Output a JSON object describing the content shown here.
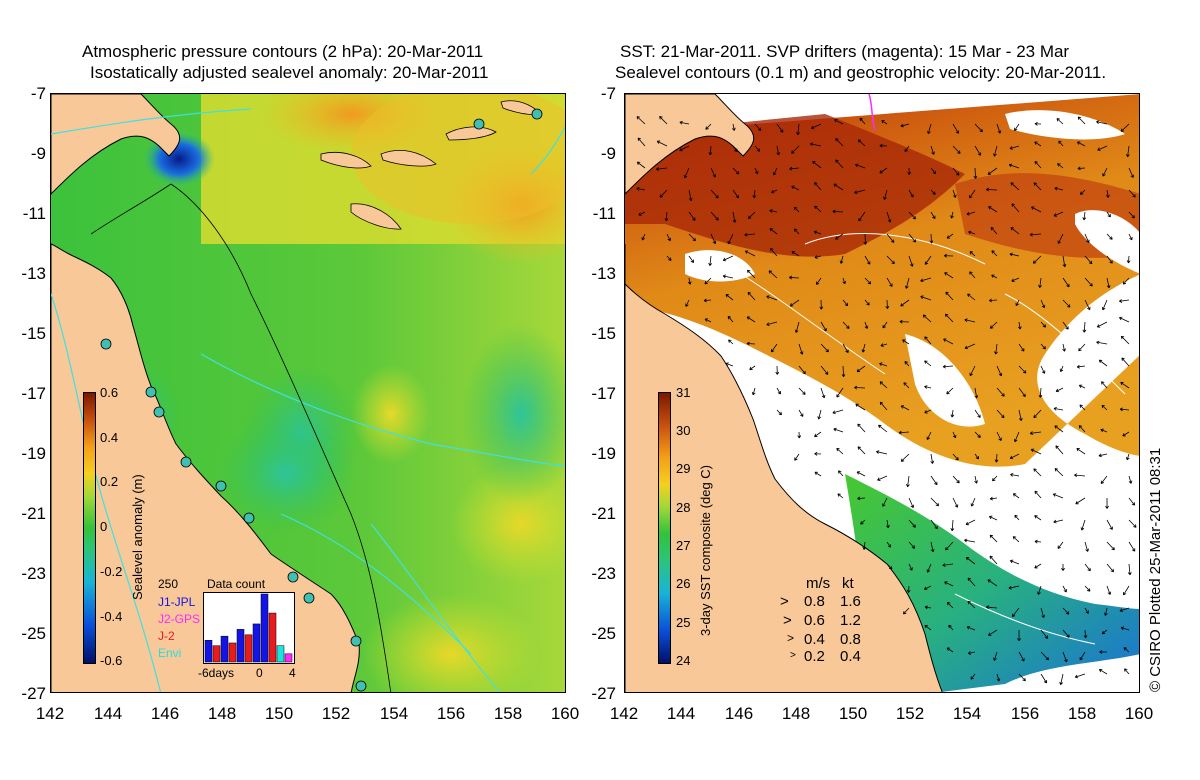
{
  "left_panel": {
    "title_line1": "Atmospheric pressure contours (2 hPa): 20-Mar-2011",
    "title_line2": "Isostatically adjusted sealevel anomaly: 20-Mar-2011",
    "colorbar": {
      "label": "Sealevel anomaly (m)",
      "ticks": [
        "0.6",
        "0.4",
        "0.2",
        "0",
        "-0.2",
        "-0.4",
        "-0.6"
      ],
      "colors": [
        "#00106a",
        "#0a4fd8",
        "#18b4d8",
        "#2cc47a",
        "#34c23a",
        "#a4d838",
        "#f4d020",
        "#f4a018",
        "#c85010",
        "#7a1800"
      ]
    },
    "inset": {
      "title": "Data count",
      "ymax_label": "250",
      "legend": [
        {
          "label": "J1-JPL",
          "color": "#1414e6"
        },
        {
          "label": "J2-GPS",
          "color": "#ff28ff"
        },
        {
          "label": "J-2",
          "color": "#e81c1c"
        },
        {
          "label": "Envi",
          "color": "#20e0e0"
        }
      ],
      "x_labels": [
        "-6days",
        "0",
        "4"
      ],
      "bars": [
        {
          "day": -6,
          "value": 80,
          "color": "#1414e6"
        },
        {
          "day": -5,
          "value": 60,
          "color": "#e81c1c"
        },
        {
          "day": -4,
          "value": 95,
          "color": "#1414e6"
        },
        {
          "day": -3,
          "value": 70,
          "color": "#e81c1c"
        },
        {
          "day": -2,
          "value": 120,
          "color": "#1414e6"
        },
        {
          "day": -1,
          "value": 100,
          "color": "#e81c1c"
        },
        {
          "day": 0,
          "value": 140,
          "color": "#1414e6"
        },
        {
          "day": 1,
          "value": 250,
          "color": "#1414e6"
        },
        {
          "day": 2,
          "value": 180,
          "color": "#e81c1c"
        },
        {
          "day": 3,
          "value": 60,
          "color": "#20e0e0"
        },
        {
          "day": 4,
          "value": 30,
          "color": "#ff28ff"
        }
      ]
    }
  },
  "right_panel": {
    "title_line1": "SST: 21-Mar-2011. SVP drifters (magenta): 15 Mar - 23 Mar",
    "title_line2": "Sealevel contours (0.1 m) and geostrophic velocity: 20-Mar-2011.",
    "colorbar": {
      "label": "3-day SST composite (deg C)",
      "ticks": [
        "31",
        "30",
        "29",
        "28",
        "27",
        "26",
        "25",
        "24"
      ],
      "colors": [
        "#00106a",
        "#0a4fd8",
        "#18b4d8",
        "#2cc47a",
        "#34c23a",
        "#a4d838",
        "#f4d020",
        "#f4a018",
        "#c85010",
        "#7a1800"
      ]
    },
    "velocity_legend": {
      "header_ms": "m/s",
      "header_kt": "kt",
      "rows": [
        {
          "ms": "0.8",
          "kt": "1.6"
        },
        {
          "ms": "0.6",
          "kt": "1.2"
        },
        {
          "ms": "0.4",
          "kt": "0.8"
        },
        {
          "ms": "0.2",
          "kt": "0.4"
        }
      ]
    },
    "credit": "© CSIRO Plotted 25-Mar-2011 08:31"
  },
  "axes": {
    "y_ticks": [
      "-7",
      "-9",
      "-11",
      "-13",
      "-15",
      "-17",
      "-19",
      "-21",
      "-23",
      "-25",
      "-27"
    ],
    "x_ticks": [
      "142",
      "144",
      "146",
      "148",
      "150",
      "152",
      "154",
      "156",
      "158",
      "160"
    ],
    "lon_range": [
      142,
      160
    ],
    "lat_range": [
      -27,
      -7
    ]
  },
  "colors": {
    "land": "#f8c898",
    "no_data": "#ffffff",
    "coastline": "#000000",
    "pressure_contour": "#40e0e0",
    "drifter": "#ff28ff"
  }
}
